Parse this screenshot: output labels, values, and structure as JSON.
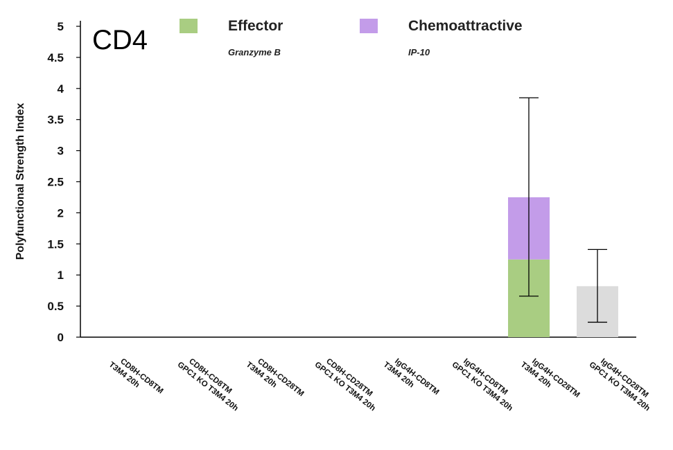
{
  "chart_data": {
    "type": "bar",
    "stacked": true,
    "panel_title": "CD4",
    "ylabel": "Polyfunctional Strength Index",
    "xlabel": "",
    "ylim": [
      0,
      5
    ],
    "yticks": [
      "0",
      "0.5",
      "1",
      "1.5",
      "2",
      "2.5",
      "3",
      "3.5",
      "4",
      "4.5",
      "5"
    ],
    "grid": false,
    "legend_position": "top",
    "categories": [
      [
        "CD8H-CD8TM",
        "T3M4 20h"
      ],
      [
        "CD8H-CD8TM",
        "GPC1 KO T3M4 20h"
      ],
      [
        "CD8H-CD28TM",
        "T3M4 20h"
      ],
      [
        "CD8H-CD28TM",
        "GPC1 KO T3M4 20h"
      ],
      [
        "IgG4H-CD8TM",
        "T3M4 20h"
      ],
      [
        "IgG4H-CD8TM",
        "GPC1 KO T3M4 20h"
      ],
      [
        "IgG4H-CD28TM",
        "T3M4 20h"
      ],
      [
        "IgG4H-CD28TM",
        "GPC1 KO T3M4 20h"
      ]
    ],
    "series": [
      {
        "name": "Effector",
        "subtitle": "Granzyme B",
        "color": "#a9cd82",
        "values": [
          0,
          0,
          0,
          0,
          0,
          0,
          1.25,
          0
        ]
      },
      {
        "name": "Chemoattractive",
        "subtitle": "IP-10",
        "color": "#c39ce9",
        "values": [
          0,
          0,
          0,
          0,
          0,
          0,
          1.0,
          0
        ]
      },
      {
        "name": "",
        "subtitle": "",
        "color": "#dcdcdc",
        "values": [
          0,
          0,
          0,
          0,
          0,
          0,
          0,
          0.82
        ]
      }
    ],
    "error_bars": [
      null,
      null,
      null,
      null,
      null,
      null,
      {
        "low": 0.66,
        "high": 3.85
      },
      {
        "low": 0.24,
        "high": 1.41
      }
    ]
  }
}
